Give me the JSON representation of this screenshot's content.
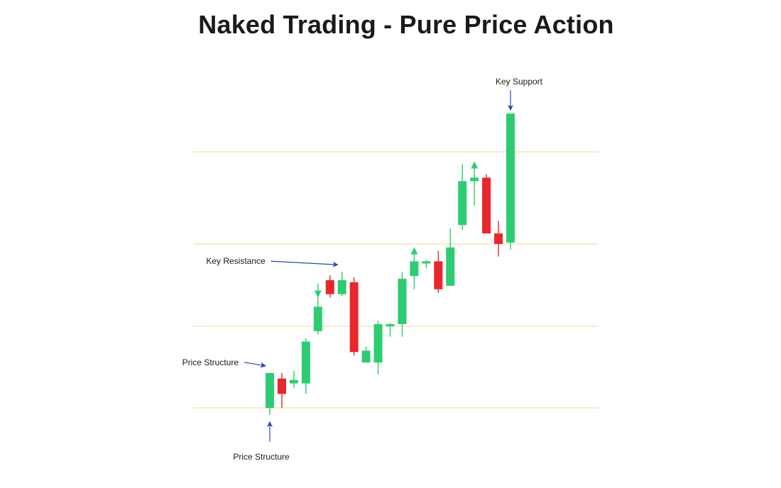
{
  "chart_data": {
    "type": "candlestick",
    "title": "Naked Trading - Pure Price Action",
    "xlabel": "",
    "ylabel": "",
    "grid": "horizontal",
    "ylim": [
      0,
      500
    ],
    "levels": [
      0,
      117,
      235,
      367
    ],
    "candles": [
      {
        "open": 0,
        "high": 50,
        "low": -10,
        "close": 50
      },
      {
        "open": 42,
        "high": 50,
        "low": 0,
        "close": 20
      },
      {
        "open": 35,
        "high": 53,
        "low": 28,
        "close": 40
      },
      {
        "open": 35,
        "high": 100,
        "low": 20,
        "close": 95
      },
      {
        "open": 110,
        "high": 160,
        "low": 105,
        "close": 145
      },
      {
        "open": 183,
        "high": 190,
        "low": 158,
        "close": 163
      },
      {
        "open": 163,
        "high": 195,
        "low": 160,
        "close": 183
      },
      {
        "open": 180,
        "high": 187,
        "low": 75,
        "close": 80
      },
      {
        "open": 65,
        "high": 88,
        "low": 65,
        "close": 82
      },
      {
        "open": 65,
        "high": 125,
        "low": 48,
        "close": 120
      },
      {
        "open": 118,
        "high": 122,
        "low": 102,
        "close": 120
      },
      {
        "open": 120,
        "high": 195,
        "low": 102,
        "close": 185
      },
      {
        "open": 189,
        "high": 212,
        "low": 170,
        "close": 210
      },
      {
        "open": 210,
        "high": 212,
        "low": 200,
        "close": 210
      },
      {
        "open": 210,
        "high": 225,
        "low": 165,
        "close": 170
      },
      {
        "open": 175,
        "high": 257,
        "low": 175,
        "close": 230
      },
      {
        "open": 262,
        "high": 350,
        "low": 255,
        "close": 325
      },
      {
        "open": 325,
        "high": 335,
        "low": 290,
        "close": 330
      },
      {
        "open": 330,
        "high": 335,
        "low": 250,
        "close": 250
      },
      {
        "open": 250,
        "high": 268,
        "low": 217,
        "close": 235
      },
      {
        "open": 237,
        "high": 422,
        "low": 227,
        "close": 422
      }
    ],
    "direction_arrows": [
      {
        "candle": 4,
        "direction": "down"
      },
      {
        "candle": 12,
        "direction": "up"
      },
      {
        "candle": 17,
        "direction": "up"
      }
    ],
    "annotations": [
      {
        "label": "Price Structure",
        "candle": 0,
        "side": "below"
      },
      {
        "label": "Price Structure",
        "candle": 0,
        "side": "left"
      },
      {
        "label": "Key Resistance",
        "candle": 6,
        "side": "left"
      },
      {
        "label": "Key Support",
        "candle": 20,
        "side": "above"
      }
    ],
    "colors": {
      "bullish": "#2ecc71",
      "bearish": "#e8262c",
      "level": "#f7d9ad",
      "annotation_arrow": "#2a4aa8"
    }
  }
}
